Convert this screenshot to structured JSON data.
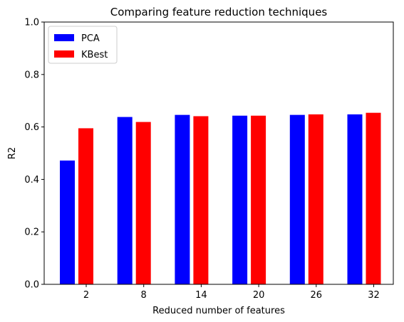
{
  "chart_data": {
    "type": "bar",
    "title": "Comparing feature reduction techniques",
    "xlabel": "Reduced number of features",
    "ylabel": "R2",
    "categories": [
      "2",
      "8",
      "14",
      "20",
      "26",
      "32"
    ],
    "series": [
      {
        "name": "PCA",
        "color": "#0000ff",
        "values": [
          0.472,
          0.638,
          0.646,
          0.643,
          0.646,
          0.648
        ]
      },
      {
        "name": "KBest",
        "color": "#ff0000",
        "values": [
          0.595,
          0.619,
          0.641,
          0.643,
          0.648,
          0.654
        ]
      }
    ],
    "ylim": [
      0,
      1.0
    ],
    "yticks": [
      "0.0",
      "0.2",
      "0.4",
      "0.6",
      "0.8",
      "1.0"
    ],
    "grid": false,
    "legend_position": "upper-left"
  }
}
